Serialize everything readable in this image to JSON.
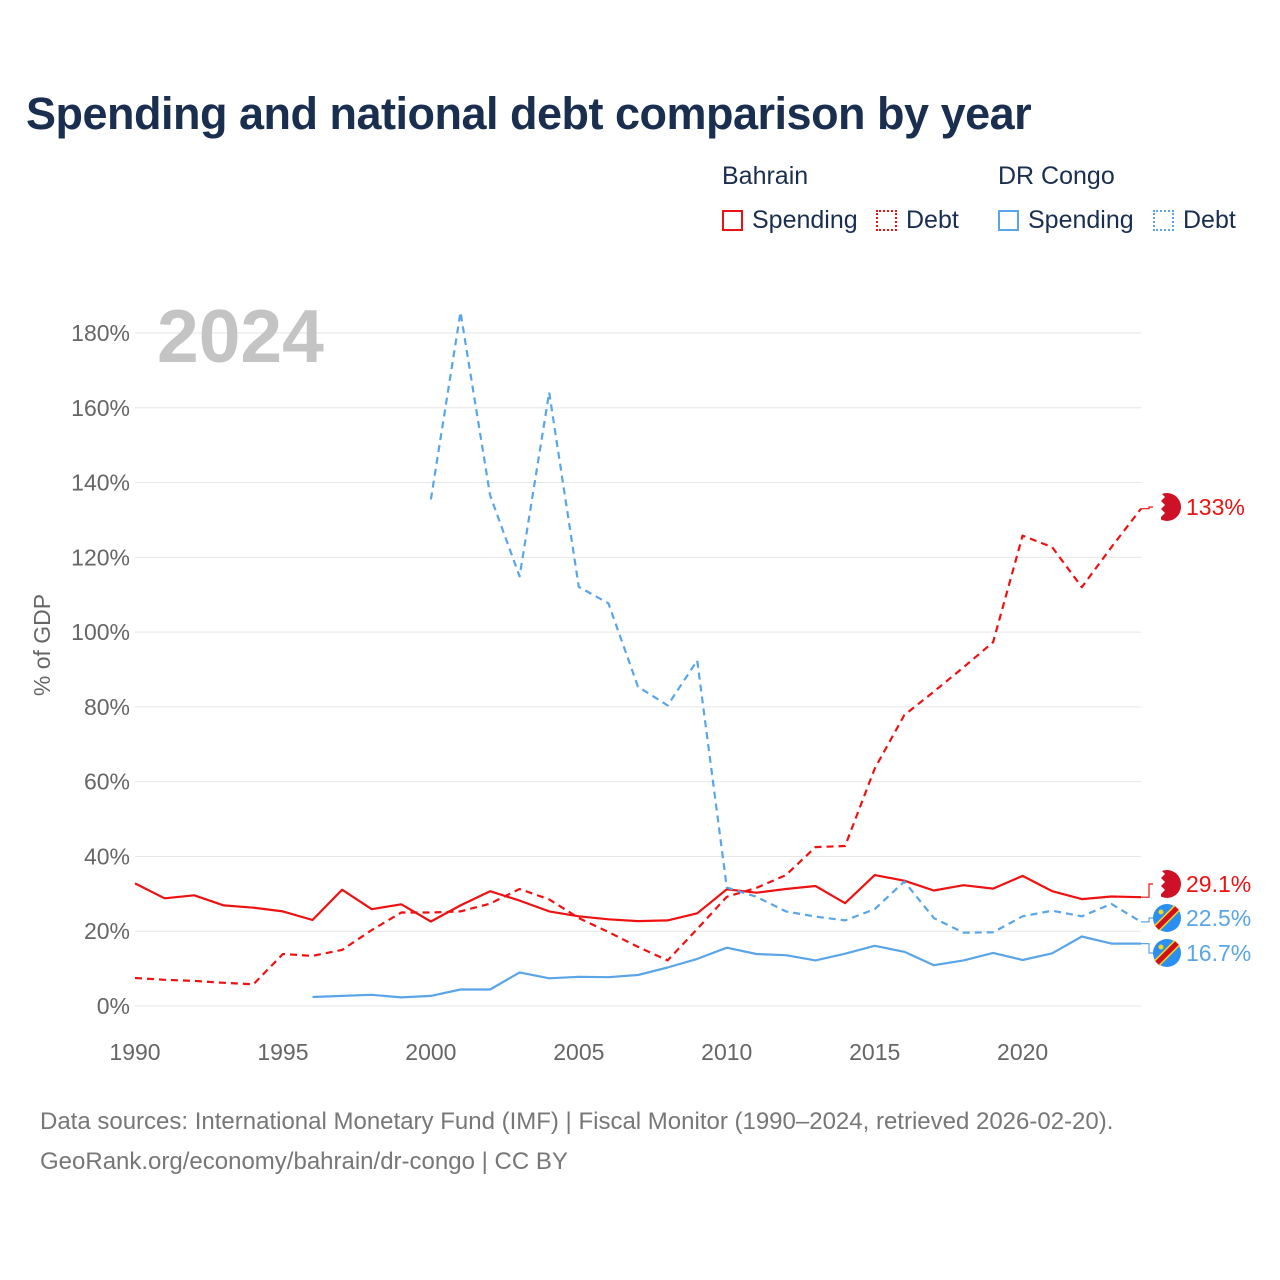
{
  "title": "Spending and national debt comparison by year",
  "colors": {
    "bahrain": "#ee1111",
    "drcongo": "#5aa5e8",
    "title": "#1a2e4f",
    "watermark": "#c4c4c4"
  },
  "legend": {
    "groups": [
      {
        "name": "Bahrain",
        "items": [
          {
            "label": "Spending",
            "style": "solid"
          },
          {
            "label": "Debt",
            "style": "dotted"
          }
        ]
      },
      {
        "name": "DR Congo",
        "items": [
          {
            "label": "Spending",
            "style": "solid"
          },
          {
            "label": "Debt",
            "style": "dotted"
          }
        ]
      }
    ]
  },
  "footer": {
    "source": "Data sources: International Monetary Fund (IMF) | Fiscal Monitor (1990–2024, retrieved 2026-02-20).",
    "credit": "GeoRank.org/economy/bahrain/dr-congo | CC BY"
  },
  "chart_data": {
    "type": "line",
    "title": "Spending and national debt comparison by year",
    "year_watermark": "2024",
    "xlabel": "",
    "ylabel": "% of GDP",
    "xlim": [
      1990,
      2024
    ],
    "ylim": [
      0,
      180
    ],
    "x_ticks": [
      1990,
      1995,
      2000,
      2005,
      2010,
      2015,
      2020
    ],
    "x_tick_labels": [
      "1990",
      "1995",
      "2000",
      "2005",
      "2010",
      "2015",
      "2020"
    ],
    "y_ticks": [
      0,
      20,
      40,
      60,
      80,
      100,
      120,
      140,
      160,
      180
    ],
    "y_tick_labels": [
      "0%",
      "20%",
      "40%",
      "60%",
      "80%",
      "100%",
      "120%",
      "140%",
      "160%",
      "180%"
    ],
    "grid": true,
    "series": [
      {
        "name": "Bahrain Spending",
        "country": "Bahrain",
        "metric": "Spending",
        "dash": "solid",
        "color": "#ee1111",
        "x": [
          1990,
          1991,
          1992,
          1993,
          1994,
          1995,
          1996,
          1997,
          1998,
          1999,
          2000,
          2001,
          2002,
          2003,
          2004,
          2005,
          2006,
          2007,
          2008,
          2009,
          2010,
          2011,
          2012,
          2013,
          2014,
          2015,
          2016,
          2017,
          2018,
          2019,
          2020,
          2021,
          2022,
          2023,
          2024
        ],
        "values": [
          32.8,
          28.8,
          29.6,
          26.9,
          26.3,
          25.3,
          23.0,
          31.1,
          25.9,
          27.2,
          22.6,
          26.9,
          30.7,
          28.2,
          25.3,
          24.0,
          23.2,
          22.7,
          22.9,
          24.8,
          31.2,
          30.3,
          31.3,
          32.1,
          27.5,
          35.0,
          33.5,
          30.9,
          32.3,
          31.4,
          34.8,
          30.7,
          28.6,
          29.3,
          29.1
        ],
        "end_label": "29.1%"
      },
      {
        "name": "Bahrain Debt",
        "country": "Bahrain",
        "metric": "Debt",
        "dash": "dashed",
        "color": "#ee1111",
        "x": [
          1990,
          1991,
          1992,
          1993,
          1994,
          1995,
          1996,
          1997,
          1998,
          1999,
          2000,
          2001,
          2002,
          2003,
          2004,
          2005,
          2006,
          2007,
          2008,
          2009,
          2010,
          2011,
          2012,
          2013,
          2014,
          2015,
          2016,
          2017,
          2018,
          2019,
          2020,
          2021,
          2022,
          2023,
          2024
        ],
        "values": [
          7.5,
          7.0,
          6.7,
          6.2,
          5.8,
          13.9,
          13.4,
          15.0,
          20.3,
          25.0,
          25.0,
          25.3,
          27.4,
          31.3,
          28.5,
          23.5,
          19.8,
          15.8,
          12.2,
          20.6,
          29.2,
          31.6,
          35.0,
          42.5,
          42.8,
          63.5,
          77.8,
          84.1,
          90.6,
          97.3,
          125.8,
          122.7,
          112.0,
          122.7,
          133.0
        ],
        "end_label": "133%"
      },
      {
        "name": "DR Congo Spending",
        "country": "DR Congo",
        "metric": "Spending",
        "dash": "solid",
        "color": "#5aa5e8",
        "x": [
          1996,
          1997,
          1998,
          1999,
          2000,
          2001,
          2002,
          2003,
          2004,
          2005,
          2006,
          2007,
          2008,
          2009,
          2010,
          2011,
          2012,
          2013,
          2014,
          2015,
          2016,
          2017,
          2018,
          2019,
          2020,
          2021,
          2022,
          2023,
          2024
        ],
        "values": [
          2.4,
          2.7,
          3.0,
          2.3,
          2.7,
          4.4,
          4.4,
          9.0,
          7.4,
          7.8,
          7.7,
          8.3,
          10.3,
          12.6,
          15.6,
          13.9,
          13.6,
          12.2,
          14.0,
          16.1,
          14.5,
          10.9,
          12.2,
          14.2,
          12.3,
          14.1,
          18.6,
          16.7,
          16.7
        ],
        "end_label": "16.7%"
      },
      {
        "name": "DR Congo Debt",
        "country": "DR Congo",
        "metric": "Debt",
        "dash": "dashed",
        "color": "#5aa5e8",
        "x": [
          2000,
          2001,
          2002,
          2003,
          2004,
          2005,
          2006,
          2007,
          2008,
          2009,
          2010,
          2011,
          2012,
          2013,
          2014,
          2015,
          2016,
          2017,
          2018,
          2019,
          2020,
          2021,
          2022,
          2023,
          2024
        ],
        "values": [
          135.5,
          185.6,
          136.6,
          114.9,
          164.1,
          112.1,
          107.7,
          85.4,
          80.4,
          92.4,
          31.7,
          29.2,
          25.3,
          23.9,
          22.9,
          25.9,
          33.3,
          23.5,
          19.6,
          19.7,
          24.0,
          25.5,
          24.0,
          27.3,
          22.5
        ],
        "end_label": "22.5%"
      }
    ]
  }
}
